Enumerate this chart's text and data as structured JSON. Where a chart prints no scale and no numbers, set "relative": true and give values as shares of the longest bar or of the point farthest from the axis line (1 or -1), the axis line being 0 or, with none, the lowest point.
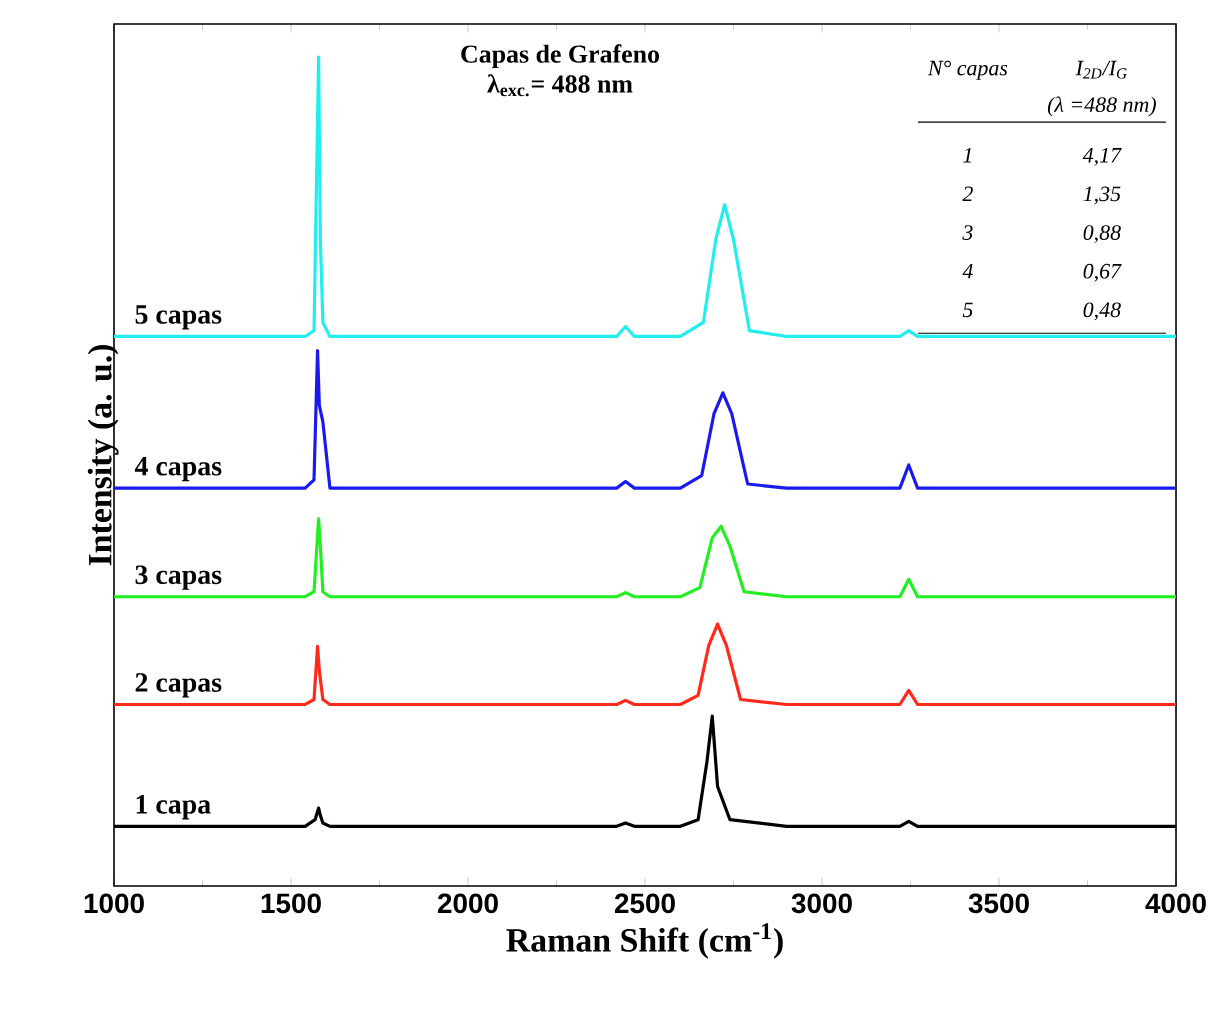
{
  "chart_data": {
    "type": "line",
    "relative": true,
    "title": "Capas de Grafeno",
    "subtitle": "λ$_{exc.}$= 488 nm",
    "xlabel": "Raman Shift (cm$^{-1}$)",
    "ylabel": "Intensity (a. u.)",
    "xlim": [
      1000,
      4000
    ],
    "xticks": [
      1000,
      1500,
      2000,
      2500,
      3000,
      3500,
      4000
    ],
    "marker": "none",
    "line_style": "solid",
    "annotations": [
      "N° capas",
      "I$_{2D}$/I$_{G}$",
      "(λ =488  nm)",
      "1",
      "4,17",
      "2",
      "1,35",
      "3",
      "0,88",
      "4",
      "0,67",
      "5",
      "0,48"
    ],
    "series": [
      {
        "name": "1 capa",
        "color": "#000000",
        "x": [
          1000,
          1300,
          1540,
          1568,
          1578,
          1583,
          1590,
          1610,
          2000,
          2420,
          2445,
          2470,
          2600,
          2650,
          2675,
          2690,
          2705,
          2740,
          2900,
          3220,
          3245,
          3270,
          3600,
          4000
        ],
        "values": [
          0.072,
          0.072,
          0.072,
          0.08,
          0.094,
          0.085,
          0.076,
          0.072,
          0.072,
          0.072,
          0.076,
          0.072,
          0.072,
          0.08,
          0.15,
          0.205,
          0.12,
          0.08,
          0.072,
          0.072,
          0.078,
          0.072,
          0.072,
          0.072
        ]
      },
      {
        "name": "2 capas",
        "color": "#ff2a1a",
        "x": [
          1000,
          1300,
          1540,
          1565,
          1575,
          1580,
          1590,
          1610,
          2000,
          2420,
          2445,
          2470,
          2600,
          2650,
          2680,
          2705,
          2730,
          2770,
          2900,
          3220,
          3245,
          3270,
          3600,
          4000
        ],
        "values": [
          0.219,
          0.219,
          0.219,
          0.225,
          0.289,
          0.26,
          0.225,
          0.219,
          0.219,
          0.219,
          0.224,
          0.219,
          0.219,
          0.23,
          0.29,
          0.316,
          0.29,
          0.225,
          0.219,
          0.219,
          0.236,
          0.219,
          0.219,
          0.219
        ]
      },
      {
        "name": "3 capas",
        "color": "#22ee22",
        "x": [
          1000,
          1300,
          1540,
          1565,
          1578,
          1583,
          1590,
          1610,
          2000,
          2420,
          2445,
          2470,
          2600,
          2655,
          2690,
          2715,
          2740,
          2780,
          2900,
          3220,
          3245,
          3270,
          3600,
          4000
        ],
        "values": [
          0.349,
          0.349,
          0.349,
          0.355,
          0.443,
          0.41,
          0.355,
          0.349,
          0.349,
          0.349,
          0.354,
          0.349,
          0.349,
          0.36,
          0.42,
          0.434,
          0.41,
          0.355,
          0.349,
          0.349,
          0.37,
          0.349,
          0.349,
          0.349
        ]
      },
      {
        "name": "4 capas",
        "color": "#1a1aee",
        "x": [
          1000,
          1300,
          1540,
          1565,
          1575,
          1580,
          1590,
          1610,
          2000,
          2420,
          2445,
          2470,
          2600,
          2660,
          2695,
          2720,
          2745,
          2790,
          2900,
          3220,
          3245,
          3270,
          3600,
          4000
        ],
        "values": [
          0.48,
          0.48,
          0.48,
          0.49,
          0.646,
          0.58,
          0.56,
          0.48,
          0.48,
          0.48,
          0.488,
          0.48,
          0.48,
          0.495,
          0.57,
          0.595,
          0.57,
          0.485,
          0.48,
          0.48,
          0.508,
          0.48,
          0.48,
          0.48
        ]
      },
      {
        "name": "5 capas",
        "color": "#22eeee",
        "x": [
          1000,
          1300,
          1540,
          1565,
          1578,
          1583,
          1590,
          1610,
          2000,
          2420,
          2445,
          2470,
          2600,
          2665,
          2700,
          2725,
          2750,
          2795,
          2900,
          3220,
          3245,
          3270,
          3600,
          4000
        ],
        "values": [
          0.663,
          0.663,
          0.663,
          0.67,
          1.0,
          0.78,
          0.68,
          0.663,
          0.663,
          0.663,
          0.675,
          0.663,
          0.663,
          0.68,
          0.78,
          0.822,
          0.78,
          0.67,
          0.663,
          0.663,
          0.67,
          0.663,
          0.663,
          0.663
        ]
      }
    ]
  }
}
